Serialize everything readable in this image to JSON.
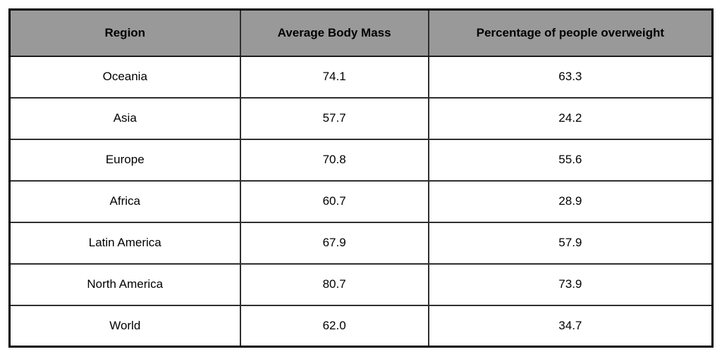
{
  "colors": {
    "header_bg": "#999999",
    "outer_border": "#000000",
    "inner_border": "#2e2e2e",
    "row_bg": "#ffffff",
    "text": "#000000"
  },
  "table": {
    "columns": [
      "Region",
      "Average Body Mass",
      "Percentage of people overweight"
    ],
    "rows": [
      {
        "region": "Oceania",
        "body_mass": "74.1",
        "overweight_pct": "63.3"
      },
      {
        "region": "Asia",
        "body_mass": "57.7",
        "overweight_pct": "24.2"
      },
      {
        "region": "Europe",
        "body_mass": "70.8",
        "overweight_pct": "55.6"
      },
      {
        "region": "Africa",
        "body_mass": "60.7",
        "overweight_pct": "28.9"
      },
      {
        "region": "Latin America",
        "body_mass": "67.9",
        "overweight_pct": "57.9"
      },
      {
        "region": "North America",
        "body_mass": "80.7",
        "overweight_pct": "73.9"
      },
      {
        "region": "World",
        "body_mass": "62.0",
        "overweight_pct": "34.7"
      }
    ]
  },
  "chart_data": {
    "type": "table",
    "title": "",
    "categories": [
      "Oceania",
      "Asia",
      "Europe",
      "Africa",
      "Latin America",
      "North America",
      "World"
    ],
    "series": [
      {
        "name": "Average Body Mass",
        "values": [
          74.1,
          57.7,
          70.8,
          60.7,
          67.9,
          80.7,
          62.0
        ]
      },
      {
        "name": "Percentage of people overweight",
        "values": [
          63.3,
          24.2,
          55.6,
          28.9,
          57.9,
          73.9,
          34.7
        ]
      }
    ],
    "legend_position": "none",
    "grid": true
  }
}
